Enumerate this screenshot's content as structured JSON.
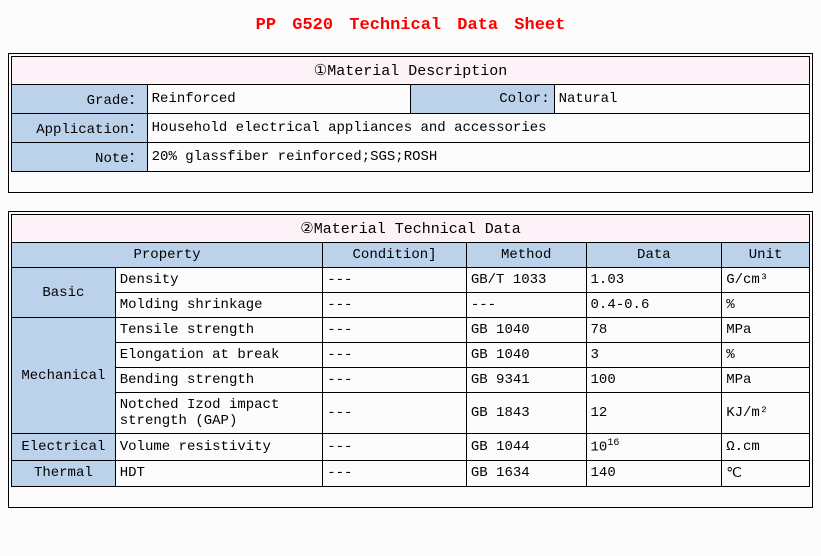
{
  "colors": {
    "title": "#ff0000",
    "section_bg": "#fdf2f8",
    "label_bg": "#bcd2ea",
    "border": "#000000",
    "text": "#000000",
    "background": "#fcfcfc"
  },
  "title": "PP  G520  Technical Data Sheet",
  "section1": {
    "header": "①Material Description",
    "grade_label": "Grade：",
    "grade_value": "Reinforced",
    "color_label": "Color:",
    "color_value": "Natural",
    "application_label": "Application：",
    "application_value": "Household electrical appliances and accessories",
    "note_label": "Note：",
    "note_value": "20% glassfiber reinforced;SGS;ROSH"
  },
  "section2": {
    "header": "②Material Technical Data",
    "columns": {
      "property": "Property",
      "condition": "Condition]",
      "method": "Method",
      "data": "Data",
      "unit": "Unit"
    },
    "categories": [
      {
        "name": "Basic",
        "rows": [
          {
            "property": "Density",
            "condition": "---",
            "method": "GB/T 1033",
            "data": "1.03",
            "unit": "G/cm³"
          },
          {
            "property": "Molding shrinkage",
            "condition": "---",
            "method": "---",
            "data": "0.4-0.6",
            "unit": "%"
          }
        ]
      },
      {
        "name": "Mechanical",
        "rows": [
          {
            "property": "Tensile strength",
            "condition": "---",
            "method": "GB 1040",
            "data": "78",
            "unit": "MPa"
          },
          {
            "property": "Elongation at break",
            "condition": "---",
            "method": "GB 1040",
            "data": "3",
            "unit": "%"
          },
          {
            "property": "Bending strength",
            "condition": "---",
            "method": "GB 9341",
            "data": "100",
            "unit": "MPa"
          },
          {
            "property": "Notched Izod impact strength (GAP)",
            "condition": "---",
            "method": "GB 1843",
            "data": "12",
            "unit": "KJ/m²"
          }
        ]
      },
      {
        "name": "Electrical",
        "rows": [
          {
            "property": "Volume resistivity",
            "condition": "---",
            "method": "GB 1044",
            "data_html": "10<sup>16</sup>",
            "unit": "Ω.cm"
          }
        ]
      },
      {
        "name": "Thermal",
        "rows": [
          {
            "property": "HDT",
            "condition": "---",
            "method": "GB 1634",
            "data": "140",
            "unit": "℃"
          }
        ]
      }
    ],
    "col_widths": {
      "category": "13%",
      "property": "26%",
      "condition": "18%",
      "method": "15%",
      "data": "17%",
      "unit": "11%"
    }
  }
}
